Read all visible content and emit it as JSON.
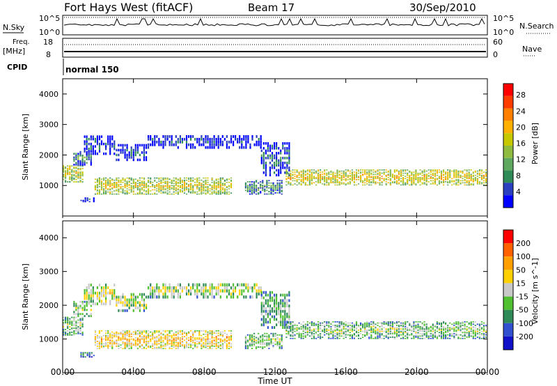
{
  "header": {
    "title": "Fort Hays West (fitACF)",
    "beam": "Beam 17",
    "date": "30/Sep/2010"
  },
  "top_panels": {
    "nsky_label": "N.Sky",
    "nsky_ticks": [
      "10^5",
      "10^0"
    ],
    "nsearch_ticks": [
      "10^5",
      "10^0"
    ],
    "nsearch_label": "N.Search",
    "freq_label_1": "Freq.",
    "freq_label_2": "[MHz]",
    "freq_ticks": [
      "18",
      "8"
    ],
    "nave_ticks": [
      "60",
      "0"
    ],
    "nave_label": "Nave",
    "cpid_label": "CPID",
    "cpid_value": "normal 150"
  },
  "chart_data": [
    {
      "type": "heatmap",
      "name": "power",
      "ylabel": "Slant Range [km]",
      "ylim": [
        0,
        4500
      ],
      "yticks": [
        "1000",
        "2000",
        "3000",
        "4000"
      ],
      "xlim": [
        0,
        24
      ],
      "colorbar_label": "Power [dB]",
      "colorbar_ticks": [
        "4",
        "8",
        "12",
        "16",
        "20",
        "24",
        "28"
      ],
      "colors": [
        "#0000ff",
        "#2a3fbf",
        "#2e8b57",
        "#5fa85f",
        "#8fbc3f",
        "#c8c800",
        "#ffb000",
        "#ff7f00",
        "#ff3c00",
        "#ff0000"
      ],
      "bands": [
        {
          "t0": 0.0,
          "t1": 1.2,
          "r0": 1100,
          "r1": 1650,
          "dr": 40,
          "level": 0.55
        },
        {
          "t0": 0.6,
          "t1": 1.6,
          "r0": 1650,
          "r1": 2100,
          "dr": 60,
          "level": 0.3
        },
        {
          "t0": 1.2,
          "t1": 3.0,
          "r0": 2000,
          "r1": 2600,
          "dr": 80,
          "level": 0.15
        },
        {
          "t0": 3.0,
          "t1": 4.8,
          "r0": 1800,
          "r1": 2300,
          "dr": 80,
          "level": 0.15
        },
        {
          "t0": 4.8,
          "t1": 11.2,
          "r0": 2200,
          "r1": 2650,
          "dr": 90,
          "level": 0.12
        },
        {
          "t0": 1.8,
          "t1": 9.5,
          "r0": 700,
          "r1": 1250,
          "dr": 35,
          "level": 0.55
        },
        {
          "t0": 1.0,
          "t1": 1.8,
          "r0": 450,
          "r1": 600,
          "dr": 40,
          "level": 0.15
        },
        {
          "t0": 10.3,
          "t1": 12.4,
          "r0": 700,
          "r1": 1150,
          "dr": 40,
          "level": 0.3
        },
        {
          "t0": 11.2,
          "t1": 12.8,
          "r0": 1300,
          "r1": 2400,
          "dr": 80,
          "level": 0.2
        },
        {
          "t0": 12.6,
          "t1": 24.0,
          "r0": 1000,
          "r1": 1500,
          "dr": 35,
          "level": 0.6
        }
      ]
    },
    {
      "type": "heatmap",
      "name": "velocity",
      "xlabel": "Time UT",
      "ylabel": "Slant Range [km]",
      "ylim": [
        0,
        4500
      ],
      "yticks": [
        "1000",
        "2000",
        "3000",
        "4000"
      ],
      "xlim": [
        0,
        24
      ],
      "xticks": [
        "00:00",
        "04:00",
        "08:00",
        "12:00",
        "16:00",
        "20:00",
        "00:00"
      ],
      "colorbar_label": "Velocity [m s^-1]",
      "colorbar_ticks": [
        "200",
        "100",
        "50",
        "15",
        "-15",
        "-50",
        "-100",
        "-200"
      ],
      "colors": [
        "#1010c8",
        "#3050d0",
        "#2e8b57",
        "#50c030",
        "#c8c8c8",
        "#ffd000",
        "#ffa000",
        "#ff6000",
        "#ff0000"
      ],
      "bands": [
        {
          "t0": 0.0,
          "t1": 1.2,
          "r0": 1100,
          "r1": 1650,
          "dr": 40,
          "level": 0.45
        },
        {
          "t0": 0.6,
          "t1": 1.6,
          "r0": 1650,
          "r1": 2100,
          "dr": 60,
          "level": 0.5
        },
        {
          "t0": 1.2,
          "t1": 3.0,
          "r0": 2000,
          "r1": 2600,
          "dr": 80,
          "level": 0.55
        },
        {
          "t0": 3.0,
          "t1": 4.8,
          "r0": 1800,
          "r1": 2300,
          "dr": 80,
          "level": 0.5
        },
        {
          "t0": 4.8,
          "t1": 11.2,
          "r0": 2200,
          "r1": 2650,
          "dr": 90,
          "level": 0.5
        },
        {
          "t0": 1.8,
          "t1": 9.5,
          "r0": 700,
          "r1": 1250,
          "dr": 35,
          "level": 0.65
        },
        {
          "t0": 1.0,
          "t1": 1.8,
          "r0": 450,
          "r1": 600,
          "dr": 40,
          "level": 0.35
        },
        {
          "t0": 10.3,
          "t1": 12.4,
          "r0": 700,
          "r1": 1150,
          "dr": 40,
          "level": 0.45
        },
        {
          "t0": 11.2,
          "t1": 12.8,
          "r0": 1300,
          "r1": 2400,
          "dr": 80,
          "level": 0.4
        },
        {
          "t0": 12.6,
          "t1": 24.0,
          "r0": 1000,
          "r1": 1500,
          "dr": 35,
          "level": 0.45
        }
      ]
    }
  ]
}
